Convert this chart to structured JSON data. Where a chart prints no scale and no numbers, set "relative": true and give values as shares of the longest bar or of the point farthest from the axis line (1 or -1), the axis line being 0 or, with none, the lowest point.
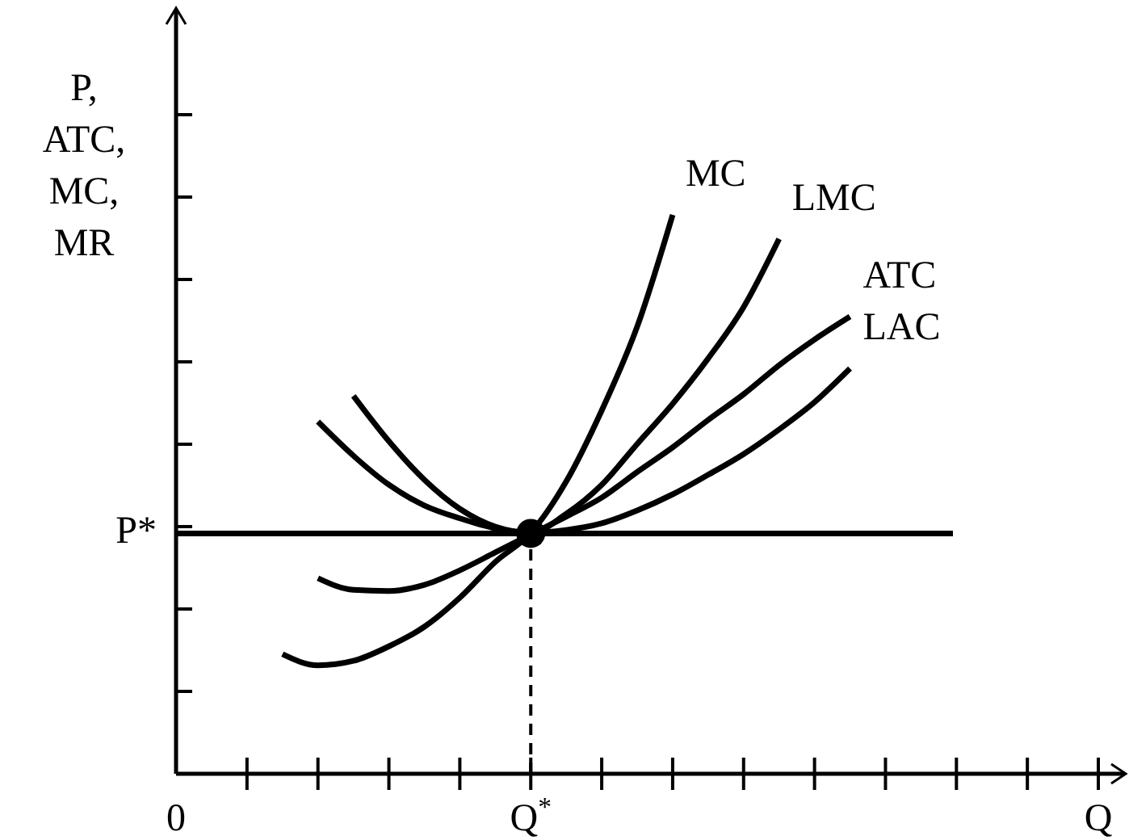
{
  "chart_data": {
    "type": "line",
    "relative": true,
    "ylabel": "P,\nATC,\nMC,\nMR",
    "categories": [
      "0",
      null,
      null,
      null,
      null,
      null,
      null,
      null,
      null,
      null,
      "Q$^{*}$",
      null,
      null,
      null,
      null,
      null,
      null,
      null,
      null,
      null,
      null,
      null,
      null,
      null,
      null,
      null,
      "Q"
    ],
    "series": [
      {
        "name": "MC",
        "color": "#000000",
        "values": [
          null,
          null,
          null,
          0.214,
          0.194,
          0.202,
          0.228,
          0.263,
          0.315,
          0.379,
          0.431,
          0.523,
          0.65,
          0.8,
          1.0,
          null,
          null,
          null,
          null,
          null,
          null,
          null,
          null,
          null,
          null,
          null,
          null
        ]
      },
      {
        "name": "LMC",
        "color": "#000000",
        "values": [
          null,
          null,
          null,
          null,
          null,
          0.676,
          0.595,
          0.526,
          0.474,
          0.442,
          0.431,
          0.465,
          0.517,
          0.59,
          0.662,
          0.743,
          0.835,
          0.957,
          null,
          null,
          null,
          null,
          null,
          null,
          null,
          null,
          null
        ]
      },
      {
        "name": "ATC",
        "color": "#000000",
        "values": [
          null,
          null,
          null,
          null,
          0.35,
          0.329,
          0.327,
          0.338,
          0.364,
          0.396,
          0.428,
          0.46,
          0.494,
          0.54,
          0.584,
          0.633,
          0.679,
          0.731,
          0.777,
          0.818,
          null,
          null,
          null,
          null,
          null,
          null,
          null
        ]
      },
      {
        "name": "LAC",
        "color": "#000000",
        "values": [
          null,
          null,
          null,
          null,
          0.63,
          0.569,
          0.517,
          0.48,
          0.457,
          0.439,
          0.431,
          0.436,
          0.448,
          0.471,
          0.5,
          0.535,
          0.572,
          0.616,
          0.665,
          0.725,
          null,
          null,
          null,
          null,
          null,
          null,
          null
        ]
      },
      {
        "type": "scatter",
        "marker": "circle",
        "color": "#000000",
        "values": [
          null,
          null,
          null,
          null,
          null,
          null,
          null,
          null,
          null,
          null,
          0.43,
          null,
          null,
          null,
          null,
          null,
          null,
          null,
          null,
          null,
          null,
          null,
          null,
          null,
          null,
          null,
          null
        ]
      }
    ],
    "ref_lines": [
      {
        "axis": "y",
        "value": 0.43,
        "label": "P*",
        "line_style": "solid"
      }
    ],
    "grid": false,
    "marker": "none",
    "line_style": "solid"
  }
}
